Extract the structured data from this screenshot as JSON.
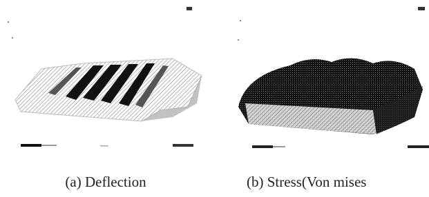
{
  "figure": {
    "panels": [
      {
        "caption": "(a) Deflection"
      },
      {
        "caption": "(b) Stress(Von mises"
      }
    ]
  }
}
